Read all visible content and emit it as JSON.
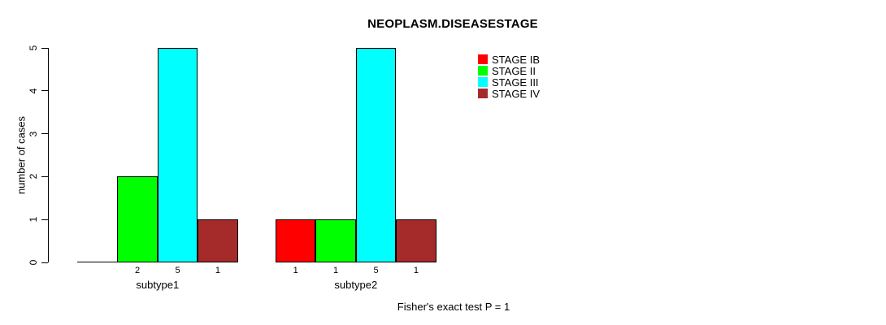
{
  "chart_data": {
    "type": "bar",
    "title": "NEOPLASM.DISEASESTAGE",
    "ylabel": "number of cases",
    "xlabel": "",
    "ylim": [
      0,
      5
    ],
    "y_ticks": [
      0,
      1,
      2,
      3,
      4,
      5
    ],
    "categories": [
      "subtype1",
      "subtype2"
    ],
    "series": [
      {
        "name": "STAGE IB",
        "color": "#FF0000",
        "values": [
          0,
          1
        ]
      },
      {
        "name": "STAGE II",
        "color": "#00FF00",
        "values": [
          2,
          1
        ]
      },
      {
        "name": "STAGE III",
        "color": "#00FFFF",
        "values": [
          5,
          5
        ]
      },
      {
        "name": "STAGE IV",
        "color": "#A52A2A",
        "values": [
          1,
          1
        ]
      }
    ],
    "annotation": "Fisher's exact test P = 1",
    "legend_position": "top-right",
    "grid": false,
    "background": "#FFFFFF",
    "bar_border_color": "#000000",
    "note": "zero-height bars show no value label"
  }
}
